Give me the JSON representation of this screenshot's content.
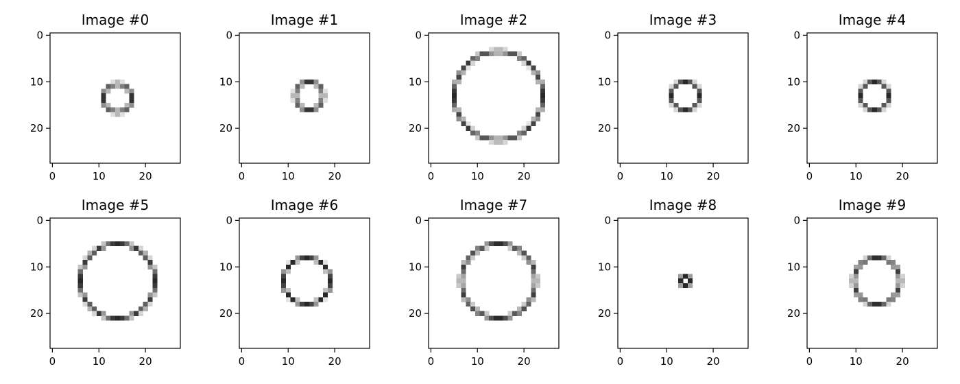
{
  "chart_data": {
    "type": "heatmap",
    "colormap": "gray_r",
    "image_size": [
      28,
      28
    ],
    "xlim": [
      -0.5,
      27.5
    ],
    "ylim": [
      27.5,
      -0.5
    ],
    "xticks": [
      0,
      10,
      20
    ],
    "yticks": [
      0,
      10,
      20
    ],
    "grid": false,
    "tick_labels": [
      "0",
      "10",
      "20"
    ],
    "panels": [
      {
        "title": "Image #0",
        "circle": {
          "cx": 14,
          "cy": 13.5,
          "r": 3.0
        }
      },
      {
        "title": "Image #1",
        "circle": {
          "cx": 14.5,
          "cy": 13.0,
          "r": 3.0
        }
      },
      {
        "title": "Image #2",
        "circle": {
          "cx": 14.5,
          "cy": 13.0,
          "r": 9.5
        }
      },
      {
        "title": "Image #3",
        "circle": {
          "cx": 14.0,
          "cy": 13.0,
          "r": 3.0
        }
      },
      {
        "title": "Image #4",
        "circle": {
          "cx": 14.0,
          "cy": 13.0,
          "r": 3.0
        }
      },
      {
        "title": "Image #5",
        "circle": {
          "cx": 14.0,
          "cy": 13.0,
          "r": 8.0
        }
      },
      {
        "title": "Image #6",
        "circle": {
          "cx": 14.0,
          "cy": 13.0,
          "r": 5.0
        }
      },
      {
        "title": "Image #7",
        "circle": {
          "cx": 14.5,
          "cy": 13.0,
          "r": 8.0
        }
      },
      {
        "title": "Image #8",
        "circle": {
          "cx": 14.0,
          "cy": 13.0,
          "r": 1.0
        }
      },
      {
        "title": "Image #9",
        "circle": {
          "cx": 14.5,
          "cy": 13.0,
          "r": 5.0
        }
      }
    ]
  }
}
